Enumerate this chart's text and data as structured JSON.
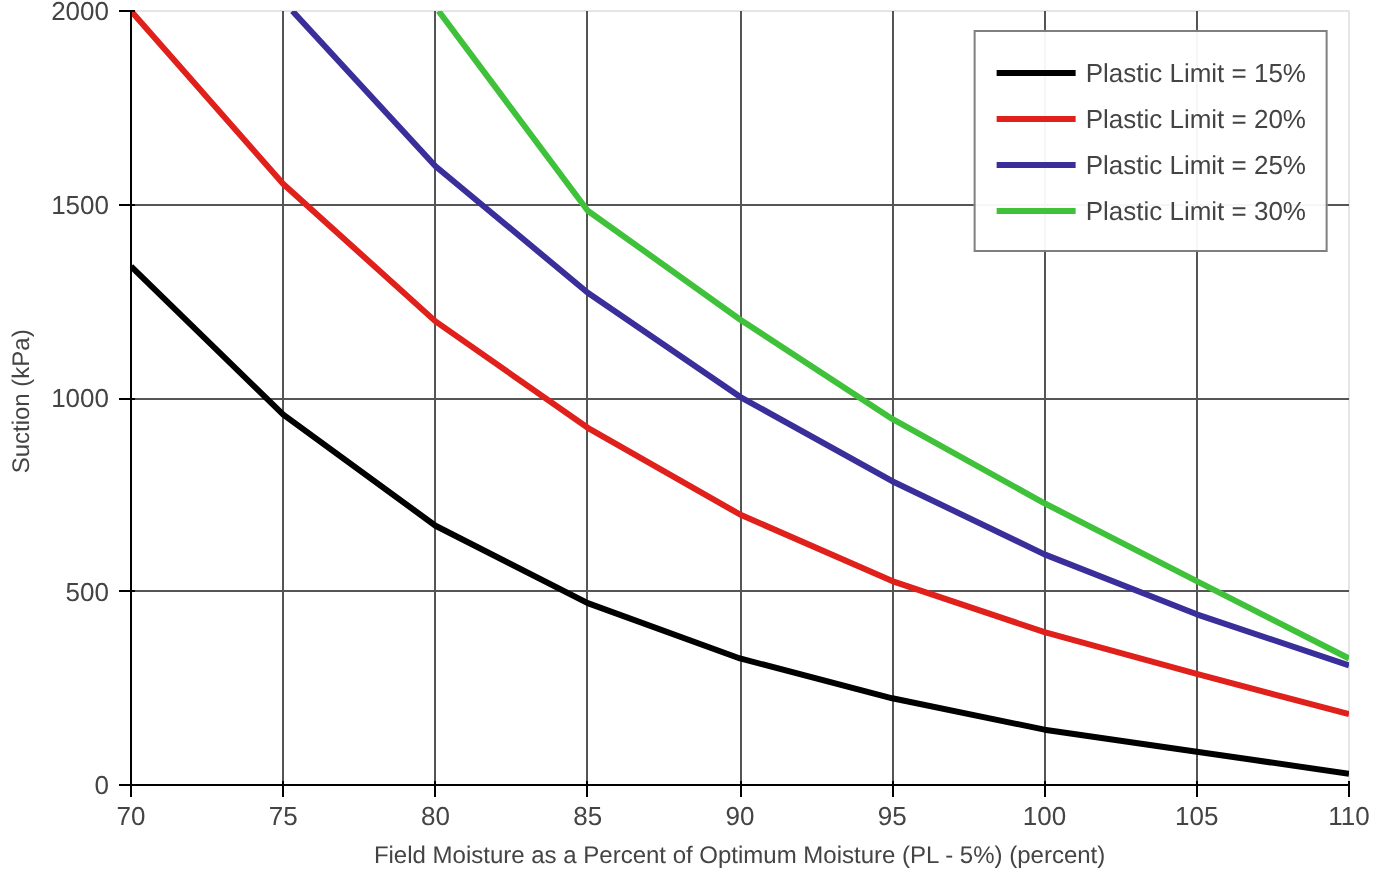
{
  "chart_data": {
    "type": "line",
    "xlabel": "Field Moisture as a Percent of Optimum Moisture (PL - 5%) (percent)",
    "ylabel": "Suction  (kPa)",
    "xlim": [
      70,
      110
    ],
    "ylim": [
      0,
      2000
    ],
    "xticks": [
      70,
      75,
      80,
      85,
      90,
      95,
      100,
      105,
      110
    ],
    "yticks": [
      0,
      500,
      1000,
      1500,
      2000
    ],
    "grid": true,
    "legend": "top right",
    "marker": "none",
    "line_style": "solid",
    "series": [
      {
        "name": "Plastic Limit = 15%",
        "color": "#000000",
        "x": [
          70,
          75,
          80,
          85,
          90,
          95,
          100,
          105,
          110
        ],
        "values": [
          1340,
          957,
          670,
          470,
          327,
          224,
          143,
          86,
          29
        ]
      },
      {
        "name": "Plastic Limit = 20%",
        "color": "#e0201b",
        "x": [
          70,
          75,
          80,
          85,
          90,
          95,
          100,
          105,
          110
        ],
        "values": [
          2000,
          1553,
          1198,
          923,
          699,
          527,
          395,
          287,
          183
        ]
      },
      {
        "name": "Plastic Limit = 25%",
        "color": "#3a2f9a",
        "x": [
          75.3,
          80,
          85,
          90,
          95,
          100,
          105,
          110
        ],
        "values": [
          2000,
          1599,
          1272,
          1003,
          785,
          596,
          441,
          309
        ]
      },
      {
        "name": "Plastic Limit = 30%",
        "color": "#3fc23a",
        "x": [
          80.1,
          85,
          90,
          95,
          100,
          105,
          110
        ],
        "values": [
          2000,
          1484,
          1203,
          946,
          728,
          527,
          327
        ]
      }
    ]
  }
}
